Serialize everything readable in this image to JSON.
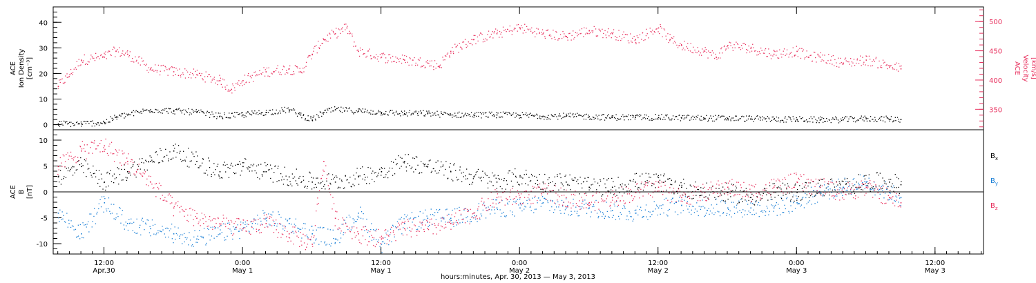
{
  "colors": {
    "black": "#000000",
    "pink": "#e8305e",
    "blue": "#1a7fd6"
  },
  "xaxis": {
    "title": "hours:minutes, Apr. 30, 2013 — May  3, 2013",
    "range_hours": [
      -4.4,
      76.2
    ],
    "ticks": [
      {
        "hour": 0,
        "time": "12:00",
        "date": "Apr.30"
      },
      {
        "hour": 12,
        "time": "0:00",
        "date": "May 1"
      },
      {
        "hour": 24,
        "time": "12:00",
        "date": "May 1"
      },
      {
        "hour": 36,
        "time": "0:00",
        "date": "May 2"
      },
      {
        "hour": 48,
        "time": "12:00",
        "date": "May 2"
      },
      {
        "hour": 60,
        "time": "0:00",
        "date": "May 3"
      },
      {
        "hour": 72,
        "time": "12:00",
        "date": "May 3"
      }
    ]
  },
  "chart_data": [
    {
      "type": "scatter",
      "panel": "top",
      "left_ylabel_lines": [
        "ACE",
        "Ion Density",
        "[cm⁻³]"
      ],
      "right_ylabel_lines": [
        "ACE",
        "Velocity",
        "[km/s]"
      ],
      "left_ylim": [
        -2,
        46
      ],
      "left_ticks": [
        "0",
        "10",
        "20",
        "30",
        "40"
      ],
      "right_ylim": [
        315,
        525
      ],
      "right_ticks": [
        "350",
        "400",
        "450",
        "500"
      ],
      "series": [
        {
          "key": "density",
          "color": "black",
          "axis": "left",
          "x": [
            -4,
            -2,
            0,
            1,
            2,
            4,
            6,
            8,
            10,
            12,
            14,
            16,
            17,
            18,
            19,
            20,
            22,
            24,
            26,
            28,
            30,
            32,
            34,
            36,
            38,
            40,
            42,
            44,
            46,
            48,
            50,
            52,
            54,
            56,
            58,
            60,
            62,
            64,
            66,
            68,
            69
          ],
          "y": [
            0.5,
            0.5,
            1,
            3,
            4,
            6,
            5.5,
            5,
            3.5,
            4,
            5,
            6,
            4,
            2,
            5,
            6,
            5.5,
            5,
            4.5,
            4.5,
            4,
            4,
            4,
            3.8,
            3.5,
            3.5,
            3.3,
            3,
            3,
            3,
            2.8,
            2.7,
            2.6,
            2.5,
            2.3,
            2.2,
            2,
            2.1,
            2.5,
            2.3,
            2.2
          ]
        },
        {
          "key": "velocity",
          "color": "pink",
          "axis": "right",
          "x": [
            -4,
            -3,
            -2,
            0,
            1,
            2,
            4,
            6,
            8,
            10,
            11,
            12,
            14,
            16,
            17,
            18,
            19,
            20,
            21,
            22,
            24,
            26,
            28,
            29,
            30,
            32,
            34,
            36,
            38,
            40,
            42,
            44,
            46,
            48,
            49,
            50,
            52,
            53,
            54,
            56,
            58,
            60,
            61,
            62,
            64,
            66,
            68,
            69
          ],
          "y": [
            390,
            410,
            435,
            440,
            450,
            445,
            420,
            415,
            410,
            400,
            385,
            400,
            415,
            420,
            415,
            445,
            470,
            480,
            490,
            450,
            440,
            435,
            430,
            425,
            450,
            470,
            480,
            490,
            480,
            475,
            485,
            480,
            470,
            490,
            470,
            460,
            450,
            440,
            460,
            455,
            445,
            450,
            440,
            440,
            430,
            435,
            425,
            420
          ]
        }
      ]
    },
    {
      "type": "scatter",
      "panel": "bottom",
      "ylabel_lines": [
        "ACE",
        "B",
        "[nT]"
      ],
      "ylim": [
        -12,
        12
      ],
      "ticks": [
        "-10",
        "-5",
        "0",
        "5",
        "10"
      ],
      "zero_line": true,
      "legend": [
        {
          "label": "B",
          "sub": "x",
          "color": "black"
        },
        {
          "label": "B",
          "sub": "y",
          "color": "blue"
        },
        {
          "label": "B",
          "sub": "z",
          "color": "pink"
        }
      ],
      "series": [
        {
          "key": "bx",
          "color": "black",
          "x": [
            -4,
            -2,
            0,
            2,
            4,
            6,
            8,
            10,
            12,
            14,
            16,
            18,
            20,
            22,
            24,
            26,
            28,
            30,
            32,
            34,
            36,
            38,
            40,
            42,
            44,
            46,
            48,
            50,
            52,
            54,
            56,
            58,
            60,
            62,
            64,
            66,
            68,
            69
          ],
          "y": [
            3,
            5,
            2,
            4,
            6,
            8,
            6,
            4,
            5,
            4,
            3,
            2,
            2,
            3,
            4,
            6,
            5,
            4,
            3,
            2,
            3,
            2,
            2,
            1,
            1,
            2,
            2,
            1,
            0,
            0,
            -1,
            0,
            0,
            1,
            1,
            2,
            2,
            1.5
          ]
        },
        {
          "key": "by",
          "color": "blue",
          "x": [
            -4,
            -2,
            0,
            2,
            4,
            6,
            8,
            10,
            12,
            14,
            16,
            18,
            20,
            22,
            24,
            26,
            28,
            30,
            32,
            34,
            36,
            38,
            40,
            42,
            44,
            46,
            48,
            50,
            52,
            54,
            56,
            58,
            60,
            62,
            64,
            66,
            68,
            69
          ],
          "y": [
            -4,
            -8,
            -2,
            -6,
            -7,
            -8,
            -9,
            -8,
            -7,
            -5,
            -6,
            -8,
            -9,
            -4,
            -10,
            -6,
            -5,
            -5,
            -4,
            -3,
            -3,
            -2,
            -3,
            -3,
            -3.5,
            -4,
            -3,
            -2.5,
            -3,
            -3,
            -3,
            -3,
            -2,
            0,
            1,
            2,
            0,
            -1
          ]
        },
        {
          "key": "bz",
          "color": "pink",
          "x": [
            -4,
            -2,
            0,
            2,
            4,
            6,
            8,
            10,
            12,
            14,
            16,
            18,
            19,
            20,
            22,
            24,
            26,
            28,
            30,
            32,
            34,
            36,
            38,
            40,
            42,
            44,
            46,
            48,
            50,
            52,
            54,
            56,
            58,
            60,
            62,
            64,
            66,
            68,
            69
          ],
          "y": [
            5,
            8,
            9,
            6,
            2,
            -3,
            -5,
            -6,
            -7,
            -6,
            -8,
            -10,
            6,
            -5,
            -8,
            -9,
            -7,
            -7,
            -6,
            -4,
            -1,
            -1,
            0,
            -1,
            -2,
            -1,
            0,
            1,
            -1,
            0,
            1,
            0,
            1,
            2,
            1,
            0,
            1,
            -1,
            -2
          ]
        }
      ]
    }
  ]
}
